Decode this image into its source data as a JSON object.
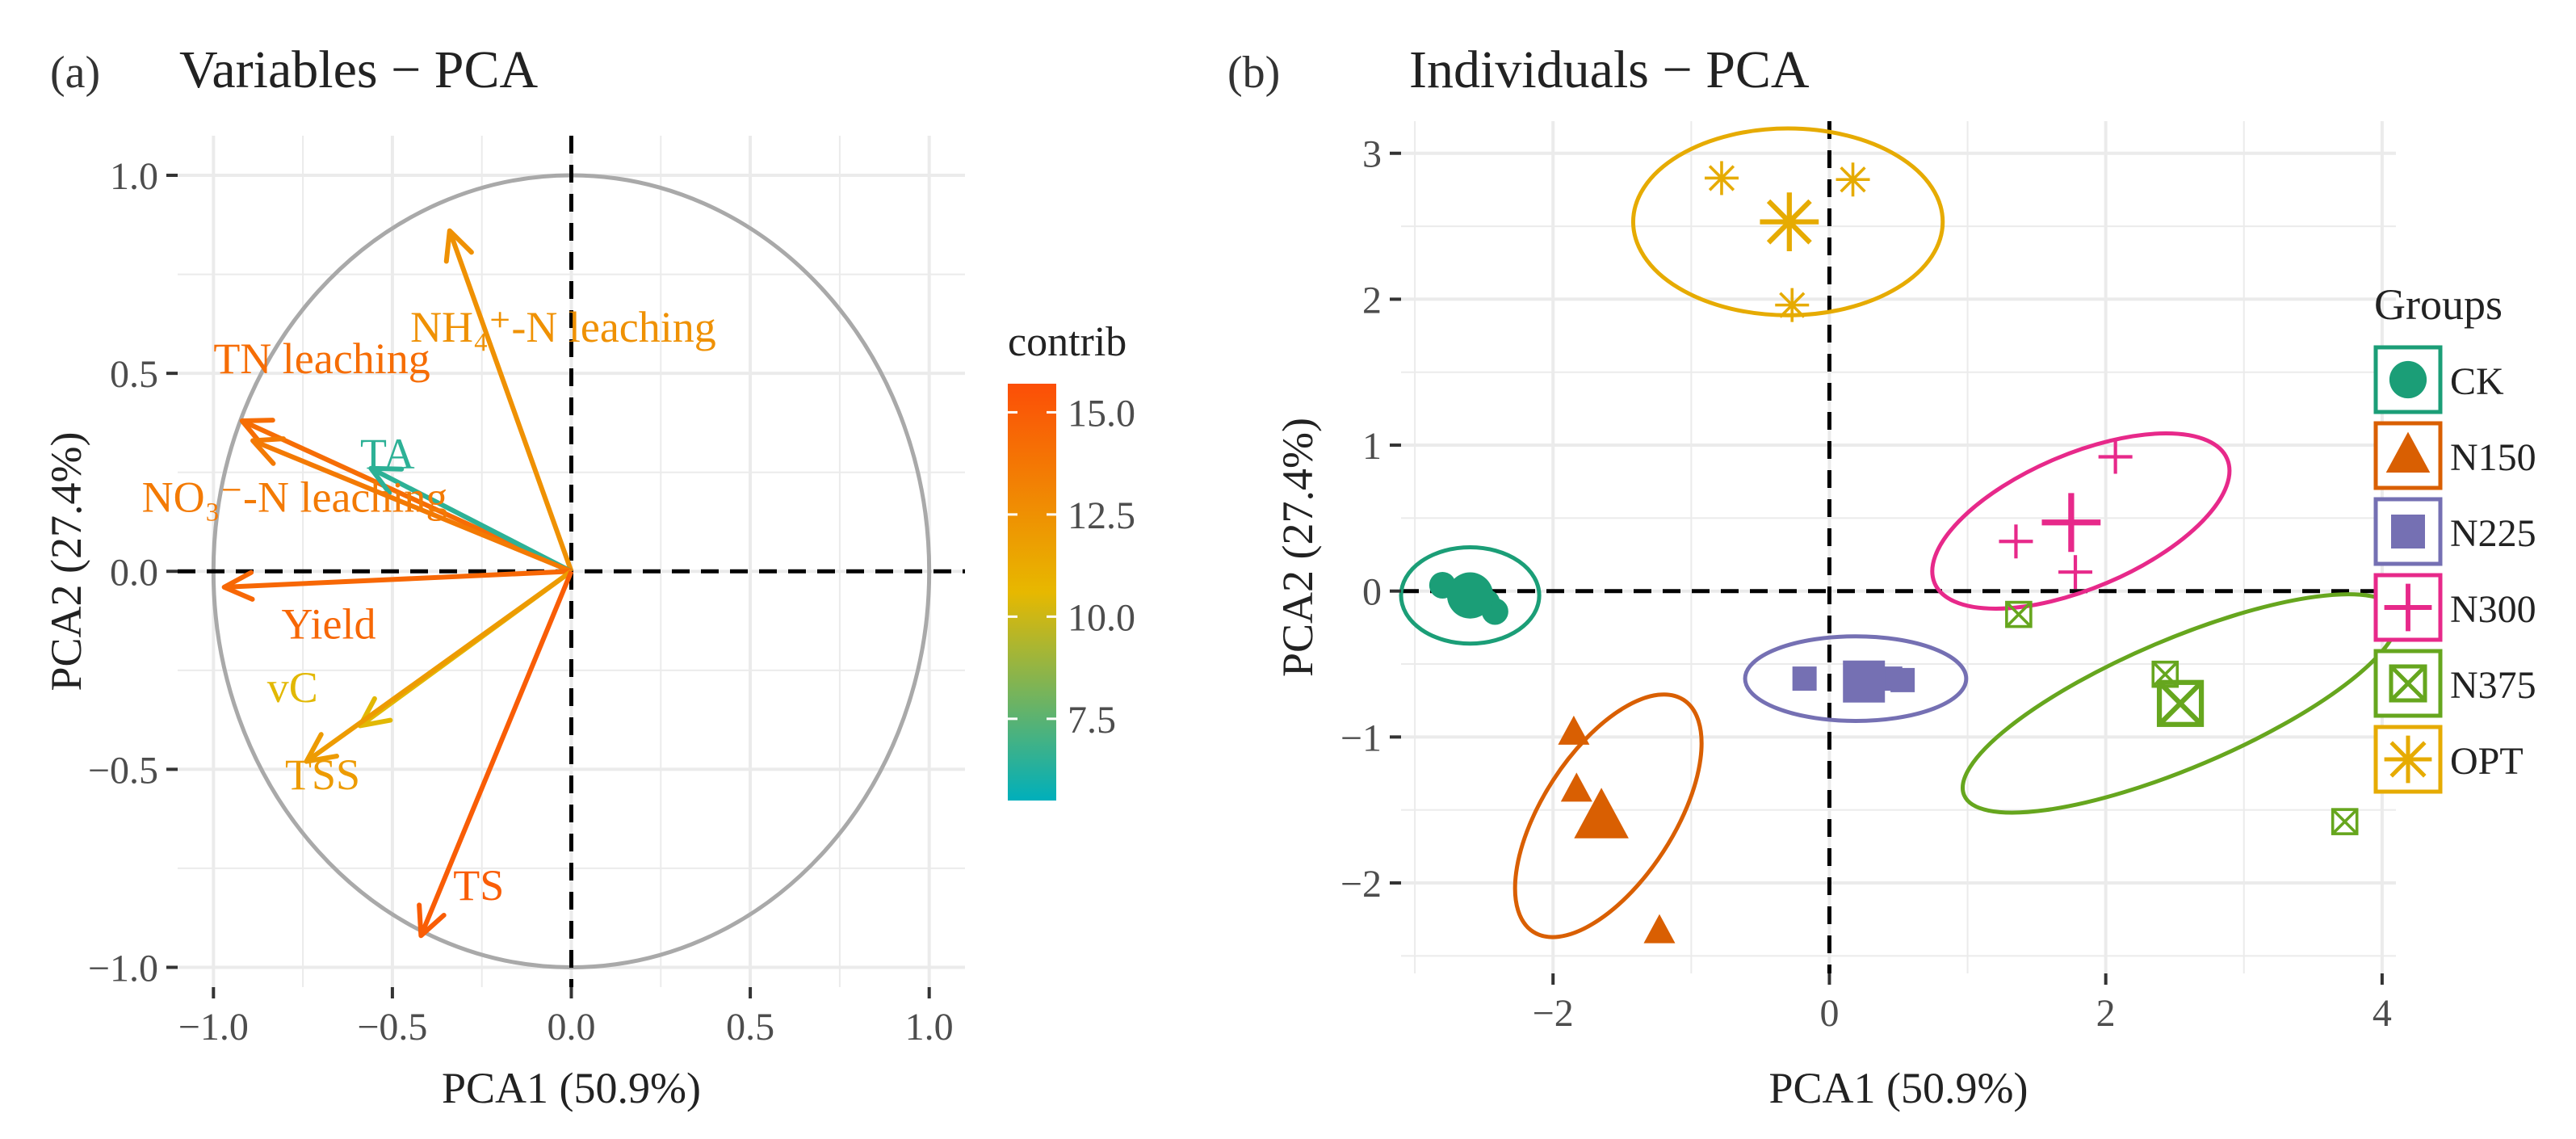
{
  "chart_data": [
    {
      "type": "biplot",
      "panel": "(a)",
      "title": "Variables − PCA",
      "xlabel": "PCA1 (50.9%)",
      "ylabel": "PCA2 (27.4%)",
      "xlim": [
        -1.1,
        1.1
      ],
      "ylim": [
        -1.05,
        1.1
      ],
      "xticks": [
        -1.0,
        -0.5,
        0.0,
        0.5,
        1.0
      ],
      "xtick_labels": [
        "−1.0",
        "−0.5",
        "0.0",
        "0.5",
        "1.0"
      ],
      "yticks": [
        -1.0,
        -0.5,
        0.0,
        0.5,
        1.0
      ],
      "ytick_labels": [
        "−1.0",
        "−0.5",
        "0.0",
        "0.5",
        "1.0"
      ],
      "grid": true,
      "correlation_circle": true,
      "variables": [
        {
          "label": "NH₄⁺-N leaching",
          "x": -0.34,
          "y": 0.86,
          "contrib": 12.5
        },
        {
          "label": "TN leaching",
          "x": -0.92,
          "y": 0.38,
          "contrib": 14.2
        },
        {
          "label": "TA",
          "x": -0.56,
          "y": 0.26,
          "contrib": 6.5
        },
        {
          "label": "NO₃⁻-N leaching",
          "x": -0.89,
          "y": 0.33,
          "contrib": 13.6
        },
        {
          "label": "Yield",
          "x": -0.97,
          "y": -0.04,
          "contrib": 14.5
        },
        {
          "label": "vC",
          "x": -0.59,
          "y": -0.39,
          "contrib": 10.5
        },
        {
          "label": "TSS",
          "x": -0.74,
          "y": -0.48,
          "contrib": 12.0
        },
        {
          "label": "TS",
          "x": -0.42,
          "y": -0.92,
          "contrib": 15.0
        }
      ],
      "colorbar": {
        "title": "contrib",
        "range": [
          5.5,
          15.7
        ],
        "ticks": [
          7.5,
          10.0,
          12.5,
          15.0
        ],
        "tick_labels": [
          "7.5",
          "10.0",
          "12.5",
          "15.0"
        ],
        "colors": [
          "#00afbb",
          "#e7b800",
          "#fc4e07"
        ]
      }
    },
    {
      "type": "scatter",
      "panel": "(b)",
      "title": "Individuals − PCA",
      "xlabel": "PCA1 (50.9%)",
      "ylabel": "PCA2 (27.4%)",
      "xlim": [
        -3.1,
        4.1
      ],
      "ylim": [
        -2.62,
        3.22
      ],
      "xticks": [
        -2,
        0,
        2,
        4
      ],
      "xtick_labels": [
        "−2",
        "0",
        "2",
        "4"
      ],
      "yticks": [
        -2,
        -1,
        0,
        1,
        2,
        3
      ],
      "ytick_labels": [
        "−2",
        "−1",
        "0",
        "1",
        "2",
        "3"
      ],
      "grid": true,
      "legend_title": "Groups",
      "legend_position": "right",
      "groups": [
        {
          "name": "CK",
          "color": "#1b9e77",
          "shape": "circle",
          "points": [
            [
              -2.8,
              0.04
            ],
            [
              -2.48,
              -0.08
            ],
            [
              -2.42,
              -0.14
            ]
          ],
          "centroid": [
            -2.6,
            -0.03
          ],
          "ellipse": {
            "cx": -2.6,
            "cy": -0.03,
            "rx": 0.5,
            "ry": 0.33,
            "angle": 0
          }
        },
        {
          "name": "N150",
          "color": "#d95f02",
          "shape": "triangle",
          "points": [
            [
              -1.85,
              -0.97
            ],
            [
              -1.83,
              -1.36
            ],
            [
              -1.23,
              -2.33
            ]
          ],
          "centroid": [
            -1.65,
            -1.55
          ],
          "ellipse": {
            "cx": -1.6,
            "cy": -1.54,
            "rx": 1.0,
            "ry": 0.45,
            "angle": -57
          }
        },
        {
          "name": "N225",
          "color": "#7570b3",
          "shape": "square",
          "points": [
            [
              -0.18,
              -0.6
            ],
            [
              0.53,
              -0.61
            ],
            [
              0.44,
              -0.6
            ]
          ],
          "centroid": [
            0.25,
            -0.62
          ],
          "ellipse": {
            "cx": 0.19,
            "cy": -0.6,
            "rx": 0.8,
            "ry": 0.29,
            "angle": 0
          }
        },
        {
          "name": "N300",
          "color": "#e7298a",
          "shape": "plus",
          "points": [
            [
              1.35,
              0.34
            ],
            [
              2.07,
              0.92
            ],
            [
              1.78,
              0.13
            ]
          ],
          "centroid": [
            1.75,
            0.47
          ],
          "ellipse": {
            "cx": 1.82,
            "cy": 0.48,
            "rx": 1.15,
            "ry": 0.46,
            "angle": -23
          }
        },
        {
          "name": "N375",
          "color": "#66a61e",
          "shape": "square-x",
          "points": [
            [
              1.37,
              -0.16
            ],
            [
              2.43,
              -0.57
            ],
            [
              3.73,
              -1.58
            ]
          ],
          "centroid": [
            2.54,
            -0.77
          ],
          "ellipse": {
            "cx": 2.54,
            "cy": -0.77,
            "rx": 1.7,
            "ry": 0.44,
            "angle": -23
          }
        },
        {
          "name": "OPT",
          "color": "#e6ab02",
          "shape": "asterisk",
          "points": [
            [
              -0.78,
              2.83
            ],
            [
              0.17,
              2.82
            ],
            [
              -0.27,
              1.96
            ]
          ],
          "centroid": [
            -0.29,
            2.53
          ],
          "ellipse": {
            "cx": -0.3,
            "cy": 2.53,
            "rx": 1.12,
            "ry": 0.64,
            "angle": 0
          }
        }
      ]
    }
  ]
}
